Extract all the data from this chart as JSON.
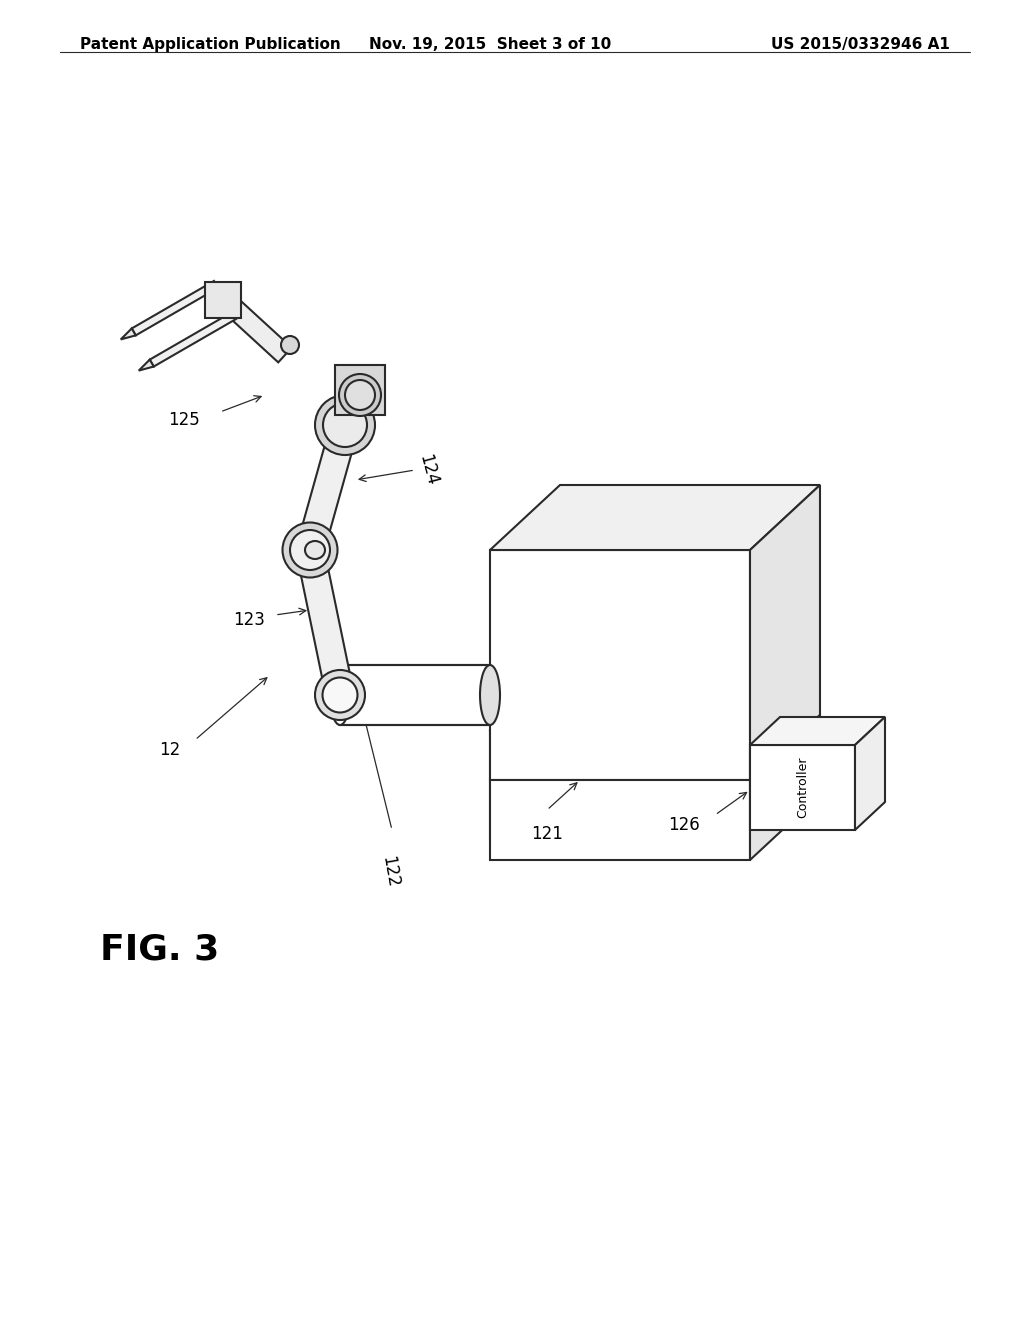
{
  "bg_color": "#ffffff",
  "header_left": "Patent Application Publication",
  "header_center": "Nov. 19, 2015  Sheet 3 of 10",
  "header_right": "US 2015/0332946 A1",
  "fig_label": "FIG. 3",
  "line_color": "#2a2a2a",
  "line_width": 1.5,
  "thin_lw": 0.8,
  "label_fontsize": 12,
  "header_fontsize": 11,
  "fig_label_fontsize": 26
}
